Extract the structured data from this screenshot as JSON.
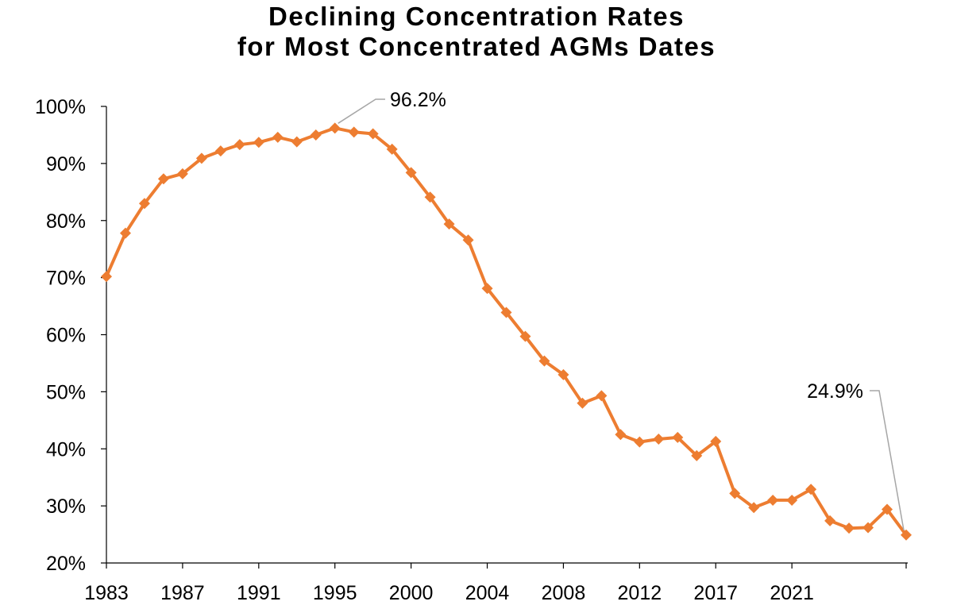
{
  "chart_data": {
    "type": "line",
    "title_lines": [
      "Declining Concentration Rates",
      "for Most Concentrated AGMs Dates"
    ],
    "xlabel": "",
    "ylabel": "",
    "ylim": [
      0.2,
      1.0
    ],
    "yticks": [
      {
        "value": 0.2,
        "label": "20%"
      },
      {
        "value": 0.3,
        "label": "30%"
      },
      {
        "value": 0.4,
        "label": "40%"
      },
      {
        "value": 0.5,
        "label": "50%"
      },
      {
        "value": 0.6,
        "label": "60%"
      },
      {
        "value": 0.7,
        "label": "70%"
      },
      {
        "value": 0.8,
        "label": "80%"
      },
      {
        "value": 0.9,
        "label": "90%"
      },
      {
        "value": 1.0,
        "label": "100%"
      }
    ],
    "xticks": [
      "1983",
      "1987",
      "1991",
      "1995",
      "2000",
      "2004",
      "2008",
      "2012",
      "2017",
      "2021"
    ],
    "grid": false,
    "legend": "none",
    "series_color": "#ED7D31",
    "values": [
      0.702,
      0.778,
      0.83,
      0.873,
      0.882,
      0.909,
      0.922,
      0.933,
      0.937,
      0.946,
      0.938,
      0.95,
      0.962,
      0.955,
      0.952,
      0.925,
      0.884,
      0.841,
      0.794,
      0.766,
      0.681,
      0.639,
      0.597,
      0.554,
      0.53,
      0.48,
      0.493,
      0.425,
      0.412,
      0.417,
      0.42,
      0.388,
      0.413,
      0.322,
      0.297,
      0.31,
      0.31,
      0.329,
      0.274,
      0.261,
      0.262,
      0.294,
      0.249
    ],
    "annotations": [
      {
        "index": 12,
        "label": "96.2%"
      },
      {
        "index": 42,
        "label": "24.9%"
      }
    ]
  }
}
